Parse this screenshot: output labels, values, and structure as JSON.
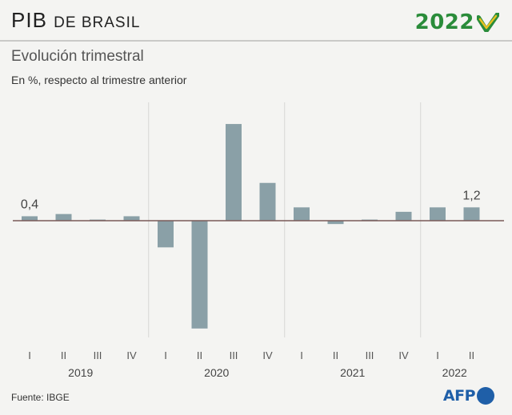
{
  "header": {
    "title_main": "PIB",
    "title_rest": "de Brasil",
    "badge_year": "2022"
  },
  "subtitle": "Evolución trimestral",
  "subsubtitle": "En %, respecto al trimestre anterior",
  "source": "Fuente: IBGE",
  "logo_text": "AFP",
  "colors": {
    "bar": "#8aa0a7",
    "zero_line": "#7a5a58",
    "year_separator": "#d6d6d4",
    "brand_green": "#2a8c3a",
    "brand_yellow": "#e8c020",
    "brand_blue": "#1f5fa8"
  },
  "chart_data": {
    "type": "bar",
    "title": "PIB de Brasil",
    "subtitle": "Evolución trimestral",
    "ylabel": "En %, respecto al trimestre anterior",
    "categories": [
      "I",
      "II",
      "III",
      "IV",
      "I",
      "II",
      "III",
      "IV",
      "I",
      "II",
      "III",
      "IV",
      "I",
      "II"
    ],
    "years": [
      {
        "label": "2019",
        "quarters": 4
      },
      {
        "label": "2020",
        "quarters": 4
      },
      {
        "label": "2021",
        "quarters": 4
      },
      {
        "label": "2022",
        "quarters": 2
      }
    ],
    "values": [
      0.4,
      0.6,
      0.1,
      0.4,
      -2.4,
      -9.7,
      8.7,
      3.4,
      1.2,
      -0.3,
      0.1,
      0.8,
      1.2,
      1.2
    ],
    "data_labels": [
      {
        "index": 0,
        "text": "0,4"
      },
      {
        "index": 13,
        "text": "1,2"
      }
    ],
    "ylim": [
      -10,
      9
    ],
    "grid": false,
    "legend": "none"
  }
}
